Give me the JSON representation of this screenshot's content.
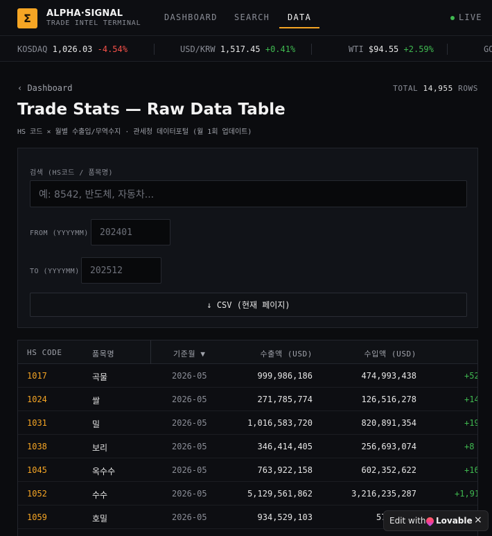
{
  "header": {
    "logo_glyph": "Σ",
    "brand": "ALPHA·SIGNAL",
    "brand_sub": "TRADE INTEL TERMINAL",
    "nav": [
      "DASHBOARD",
      "SEARCH",
      "DATA"
    ],
    "live": "LIVE"
  },
  "ticker": [
    {
      "name": "KOSDAQ",
      "value": "1,026.03",
      "change": "-4.54%",
      "dir": "neg"
    },
    {
      "name": "USD/KRW",
      "value": "1,517.45",
      "change": "+0.41%",
      "dir": "pos"
    },
    {
      "name": "WTI",
      "value": "$94.55",
      "change": "+2.59%",
      "dir": "pos"
    },
    {
      "name": "GO",
      "value": "",
      "change": "",
      "dir": "pos"
    }
  ],
  "page": {
    "back": "‹ Dashboard",
    "total_label": "TOTAL",
    "total_value": "14,955",
    "total_unit": "ROWS",
    "title": "Trade Stats — Raw Data Table",
    "subtitle": "HS 코드 × 월별 수출입/무역수지 · 관세청 데이터포털 (월 1회 업데이트)"
  },
  "filters": {
    "search_label": "검색 (HS코드 / 품목명)",
    "search_placeholder": "예: 8542, 반도체, 자동차...",
    "from_label": "FROM (YYYYMM)",
    "from_placeholder": "202401",
    "to_label": "TO (YYYYMM)",
    "to_placeholder": "202512",
    "csv_label": "↓ CSV (현재 페이지)"
  },
  "table": {
    "headers": {
      "code": "HS CODE",
      "name": "품목명",
      "month": "기준월 ▼",
      "export": "수출액 (USD)",
      "import": "수입액 (USD)"
    },
    "rows": [
      {
        "code": "1017",
        "name": "곡물",
        "month": "2026-05",
        "export": "999,986,186",
        "import": "474,993,438",
        "balance": "+52"
      },
      {
        "code": "1024",
        "name": "쌀",
        "month": "2026-05",
        "export": "271,785,774",
        "import": "126,516,278",
        "balance": "+14"
      },
      {
        "code": "1031",
        "name": "밀",
        "month": "2026-05",
        "export": "1,016,583,720",
        "import": "820,891,354",
        "balance": "+19"
      },
      {
        "code": "1038",
        "name": "보리",
        "month": "2026-05",
        "export": "346,414,405",
        "import": "256,693,074",
        "balance": "+8"
      },
      {
        "code": "1045",
        "name": "옥수수",
        "month": "2026-05",
        "export": "763,922,158",
        "import": "602,352,622",
        "balance": "+16"
      },
      {
        "code": "1052",
        "name": "수수",
        "month": "2026-05",
        "export": "5,129,561,862",
        "import": "3,216,235,287",
        "balance": "+1,91"
      },
      {
        "code": "1059",
        "name": "호밀",
        "month": "2026-05",
        "export": "934,529,103",
        "import": "577,6",
        "balance": ""
      }
    ]
  },
  "badge": {
    "edit_with": "Edit with",
    "brand": "Lovable",
    "close": "×"
  }
}
